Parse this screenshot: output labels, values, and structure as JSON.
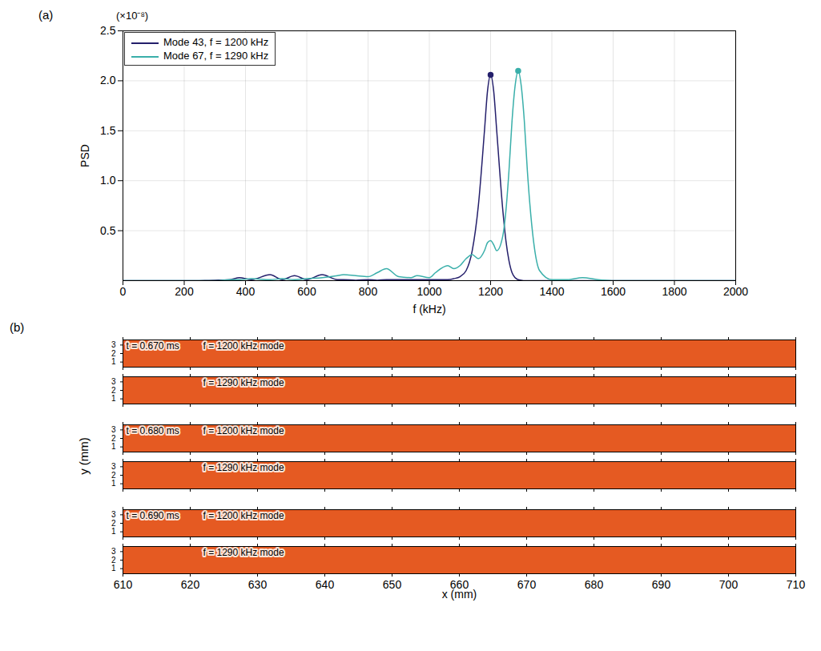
{
  "chart_data": [
    {
      "type": "line",
      "panel_label": "(a)",
      "y_multiplier_label": "(×10⁻⁸)",
      "x_label": "f (kHz)",
      "y_label": "PSD",
      "x": [
        0,
        100,
        200,
        300,
        350,
        380,
        420,
        480,
        520,
        560,
        600,
        650,
        700,
        720,
        760,
        800,
        830,
        860,
        900,
        940,
        960,
        1000,
        1020,
        1060,
        1080,
        1100,
        1120,
        1140,
        1160,
        1180,
        1190,
        1200,
        1210,
        1220,
        1240,
        1250,
        1260,
        1270,
        1280,
        1290,
        1300,
        1310,
        1320,
        1340,
        1360,
        1400,
        1450,
        1500,
        1550,
        1600,
        1800,
        2000
      ],
      "series": [
        {
          "name": "Mode 43, f = 1200 kHz",
          "color": "#241f6b",
          "marker": "peak",
          "values": [
            0,
            0,
            0,
            0.005,
            0.01,
            0.03,
            0.01,
            0.06,
            0.01,
            0.05,
            0.01,
            0.06,
            0.01,
            0.01,
            0.005,
            0.01,
            0.005,
            0.01,
            0.01,
            0.01,
            0.01,
            0.01,
            0.01,
            0.01,
            0.02,
            0.04,
            0.1,
            0.3,
            0.75,
            1.5,
            1.9,
            2.06,
            1.9,
            1.5,
            0.7,
            0.4,
            0.2,
            0.08,
            0.03,
            0.01,
            0.005,
            0,
            0,
            0,
            0,
            0,
            0,
            0,
            0,
            0,
            0,
            0
          ]
        },
        {
          "name": "Mode 67, f = 1290 kHz",
          "color": "#3aafaa",
          "marker": "peak",
          "values": [
            0,
            0,
            0,
            0,
            0.01,
            0.01,
            0.02,
            0.01,
            0.02,
            0.01,
            0.02,
            0.03,
            0.05,
            0.06,
            0.05,
            0.04,
            0.08,
            0.12,
            0.04,
            0.03,
            0.05,
            0.03,
            0.08,
            0.15,
            0.12,
            0.15,
            0.22,
            0.26,
            0.22,
            0.3,
            0.38,
            0.4,
            0.36,
            0.3,
            0.45,
            0.7,
            1.1,
            1.6,
            1.95,
            2.1,
            1.95,
            1.6,
            1.1,
            0.4,
            0.1,
            0.01,
            0.01,
            0.03,
            0.01,
            0,
            0,
            0
          ]
        }
      ],
      "xlim": [
        0,
        2000
      ],
      "xticks": [
        0,
        200,
        400,
        600,
        800,
        1000,
        1200,
        1400,
        1600,
        1800,
        2000
      ],
      "ylim": [
        0,
        2.5
      ],
      "yticks": [
        0.5,
        {
          "value": 1,
          "label": "1.0"
        },
        1.5,
        {
          "value": 2,
          "label": "2.0"
        },
        2.5
      ],
      "grid": true,
      "legend": "upper left"
    },
    {
      "type": "mode_strips",
      "panel_label": "(b)",
      "x_label": "x (mm)",
      "y_label": "y (mm)",
      "xlim": [
        610,
        710
      ],
      "xticks": [
        610,
        620,
        630,
        640,
        650,
        660,
        670,
        680,
        690,
        700,
        710
      ],
      "ylim": [
        0.4,
        3.6
      ],
      "yticks": [
        1,
        2,
        3
      ],
      "color": "#e55a22",
      "panels": [
        {
          "time": "t = 0.670 ms",
          "label": "f = 1200 kHz mode"
        },
        {
          "label": "f = 1290 kHz mode"
        },
        {
          "time": "t = 0.680 ms",
          "label": "f = 1200 kHz mode"
        },
        {
          "label": "f = 1290 kHz mode"
        },
        {
          "time": "t = 0.690 ms",
          "label": "f = 1200 kHz mode"
        },
        {
          "label": "f = 1290 kHz mode"
        }
      ]
    }
  ]
}
